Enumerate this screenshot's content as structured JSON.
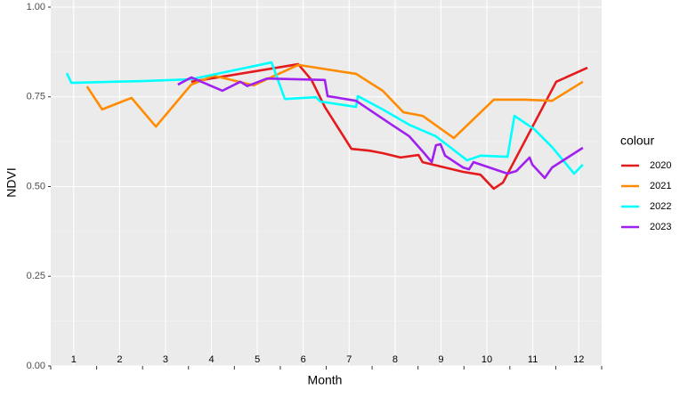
{
  "chart_data": {
    "type": "line",
    "x_label": "Month",
    "y_label": "NDVI",
    "legend_title": "colour",
    "xlim": [
      0.5,
      12.5
    ],
    "xticks": [
      1,
      2,
      3,
      4,
      5,
      6,
      7,
      8,
      9,
      10,
      11,
      12
    ],
    "ylim": [
      0,
      1
    ],
    "yticks": [
      {
        "value": 0,
        "label": "0.00"
      },
      {
        "value": 0.25,
        "label": "0.25"
      },
      {
        "value": 0.5,
        "label": "0.50"
      },
      {
        "value": 0.75,
        "label": "0.75"
      },
      {
        "value": 1,
        "label": "1.00"
      }
    ],
    "grid": true,
    "legend_position": "right",
    "series": [
      {
        "name": "2020",
        "color": "#e41a1c",
        "x": [
          3.56,
          5.89,
          6.18,
          6.47,
          7.05,
          7.44,
          7.73,
          8.12,
          8.51,
          8.6,
          9.48,
          9.86,
          10.15,
          10.35,
          11.51,
          12.19
        ],
        "values": [
          0.792,
          0.841,
          0.797,
          0.722,
          0.605,
          0.6,
          0.593,
          0.581,
          0.588,
          0.568,
          0.541,
          0.533,
          0.494,
          0.511,
          0.792,
          0.831
        ]
      },
      {
        "name": "2021",
        "color": "#ff8c00",
        "x": [
          1.29,
          1.62,
          2.26,
          2.79,
          3.56,
          4.05,
          4.92,
          5.89,
          7.15,
          7.73,
          8.18,
          8.6,
          9.28,
          10.15,
          10.83,
          11.42,
          12.09
        ],
        "values": [
          0.779,
          0.715,
          0.747,
          0.667,
          0.784,
          0.809,
          0.782,
          0.839,
          0.814,
          0.767,
          0.707,
          0.697,
          0.635,
          0.742,
          0.742,
          0.739,
          0.792
        ]
      },
      {
        "name": "2022",
        "color": "#00ffff",
        "x": [
          0.85,
          0.95,
          2.5,
          3.56,
          5.31,
          5.6,
          6.28,
          6.37,
          7.15,
          7.19,
          7.73,
          8.31,
          8.89,
          9.57,
          9.86,
          10.45,
          10.6,
          11.03,
          11.42,
          11.9,
          12.09
        ],
        "values": [
          0.816,
          0.789,
          0.794,
          0.799,
          0.846,
          0.744,
          0.749,
          0.737,
          0.722,
          0.752,
          0.715,
          0.672,
          0.64,
          0.573,
          0.586,
          0.583,
          0.697,
          0.66,
          0.61,
          0.536,
          0.561
        ]
      },
      {
        "name": "2023",
        "color": "#a020f0",
        "x": [
          3.27,
          3.56,
          4.24,
          4.63,
          4.78,
          5.21,
          6.47,
          6.53,
          7.15,
          7.93,
          8.31,
          8.6,
          8.8,
          8.89,
          8.99,
          9.09,
          9.48,
          9.61,
          9.71,
          10.45,
          10.64,
          10.93,
          10.99,
          11.26,
          11.42,
          12.09
        ],
        "values": [
          0.784,
          0.804,
          0.767,
          0.792,
          0.78,
          0.801,
          0.797,
          0.752,
          0.739,
          0.672,
          0.64,
          0.598,
          0.568,
          0.615,
          0.618,
          0.586,
          0.553,
          0.548,
          0.568,
          0.536,
          0.543,
          0.581,
          0.561,
          0.524,
          0.553,
          0.608
        ]
      }
    ]
  }
}
